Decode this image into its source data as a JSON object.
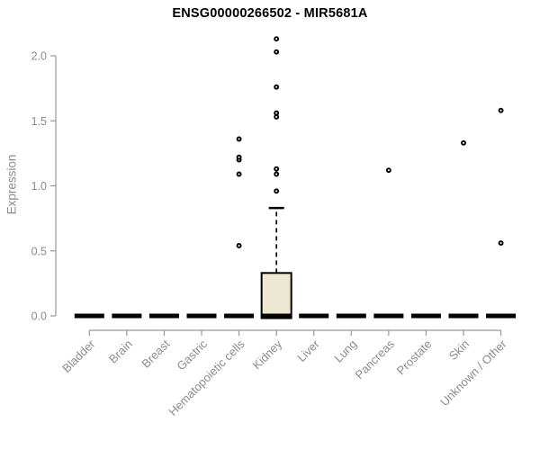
{
  "chart_data": {
    "type": "boxplot",
    "title": "ENSG00000266502 - MIR5681A",
    "ylabel": "Expression",
    "xlabel": "",
    "ylim": [
      0,
      2.2
    ],
    "yticks": [
      0,
      0.5,
      1,
      1.5,
      2
    ],
    "ytick_labels": [
      "0.0",
      "0.5",
      "1.0",
      "1.5",
      "2.0"
    ],
    "grid": false,
    "legend": null,
    "categories": [
      "Bladder",
      "Brain",
      "Breast",
      "Gastric",
      "Hematopoietic cells",
      "Kidney",
      "Liver",
      "Lung",
      "Pancreas",
      "Prostate",
      "Skin",
      "Unknown / Other"
    ],
    "series": [
      {
        "category": "Bladder",
        "min": 0,
        "q1": 0,
        "median": 0,
        "q3": 0,
        "max": 0,
        "outliers": []
      },
      {
        "category": "Brain",
        "min": 0,
        "q1": 0,
        "median": 0,
        "q3": 0,
        "max": 0,
        "outliers": []
      },
      {
        "category": "Breast",
        "min": 0,
        "q1": 0,
        "median": 0,
        "q3": 0,
        "max": 0,
        "outliers": []
      },
      {
        "category": "Gastric",
        "min": 0,
        "q1": 0,
        "median": 0,
        "q3": 0,
        "max": 0,
        "outliers": []
      },
      {
        "category": "Hematopoietic cells",
        "min": 0,
        "q1": 0,
        "median": 0,
        "q3": 0,
        "max": 0,
        "outliers": [
          0.54,
          1.09,
          1.2,
          1.22,
          1.36
        ]
      },
      {
        "category": "Kidney",
        "min": 0,
        "q1": 0,
        "median": 0,
        "q3": 0.33,
        "max": 0.83,
        "outliers": [
          0.96,
          1.09,
          1.13,
          1.53,
          1.56,
          1.76,
          2.03,
          2.13
        ]
      },
      {
        "category": "Liver",
        "min": 0,
        "q1": 0,
        "median": 0,
        "q3": 0,
        "max": 0,
        "outliers": []
      },
      {
        "category": "Lung",
        "min": 0,
        "q1": 0,
        "median": 0,
        "q3": 0,
        "max": 0,
        "outliers": []
      },
      {
        "category": "Pancreas",
        "min": 0,
        "q1": 0,
        "median": 0,
        "q3": 0,
        "max": 0,
        "outliers": [
          1.12
        ]
      },
      {
        "category": "Prostate",
        "min": 0,
        "q1": 0,
        "median": 0,
        "q3": 0,
        "max": 0,
        "outliers": []
      },
      {
        "category": "Skin",
        "min": 0,
        "q1": 0,
        "median": 0,
        "q3": 0,
        "max": 0,
        "outliers": [
          1.33
        ]
      },
      {
        "category": "Unknown / Other",
        "min": 0,
        "q1": 0,
        "median": 0,
        "q3": 0,
        "max": 0,
        "outliers": [
          0.56,
          1.58
        ]
      }
    ],
    "colors": {
      "title": "#000000",
      "axis": "#999999",
      "tick_label": "#8c8c8c",
      "category_label": "#8c8c8c",
      "box_fill": "#ede8d1",
      "box_border": "#000000",
      "median": "#000000",
      "whisker": "#000000",
      "outlier_stroke": "#000000",
      "outlier_fill": "#ffffff"
    }
  }
}
